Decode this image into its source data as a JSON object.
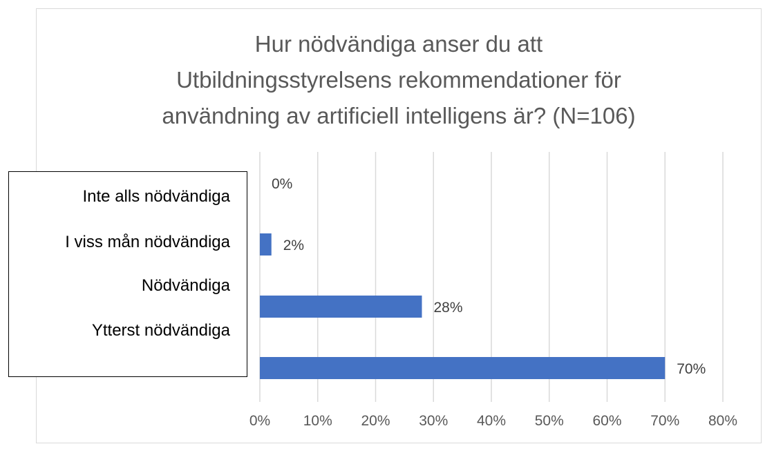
{
  "chart_data": {
    "type": "bar",
    "orientation": "horizontal",
    "title_lines": [
      "Hur nödvändiga anser du att",
      "Utbildningsstyrelsens rekommendationer för",
      "användning av artificiell intelligens är? (N=106)"
    ],
    "category_labels": [
      "Inte alls nödvändiga",
      "I viss mån nödvändiga",
      "Nödvändiga",
      "Ytterst nödvändiga"
    ],
    "values": [
      0,
      2,
      28,
      70
    ],
    "data_labels": [
      "0%",
      "2%",
      "28%",
      "70%"
    ],
    "x_ticks": [
      "0%",
      "10%",
      "20%",
      "30%",
      "40%",
      "50%",
      "60%",
      "70%",
      "80%"
    ],
    "xlim": [
      0,
      80
    ],
    "grid": true,
    "bar_color": "#4472C4",
    "grid_color": "#d9d9d9",
    "tick_color": "#595959"
  }
}
